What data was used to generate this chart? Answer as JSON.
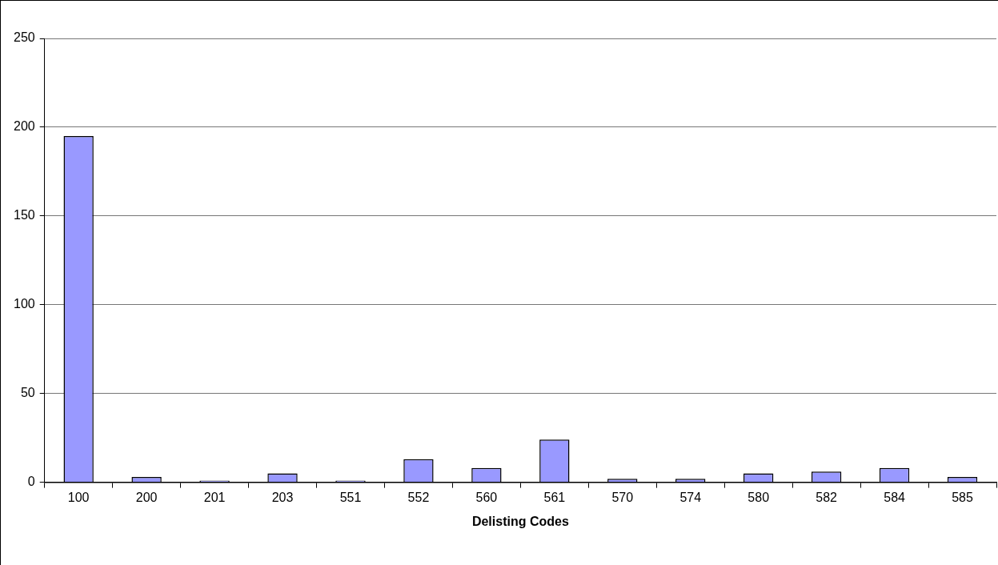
{
  "chart_data": {
    "type": "bar",
    "xlabel": "Delisting Codes",
    "categories": [
      "100",
      "200",
      "201",
      "203",
      "551",
      "552",
      "560",
      "561",
      "570",
      "574",
      "580",
      "582",
      "584",
      "585"
    ],
    "values": [
      195,
      3,
      1,
      5,
      1,
      13,
      8,
      24,
      2,
      2,
      5,
      6,
      8,
      3
    ],
    "color": "#9999ff",
    "ylim": [
      0,
      250
    ],
    "yticks": [
      0,
      50,
      100,
      150,
      200,
      250
    ],
    "grid": "y",
    "legend": false
  }
}
